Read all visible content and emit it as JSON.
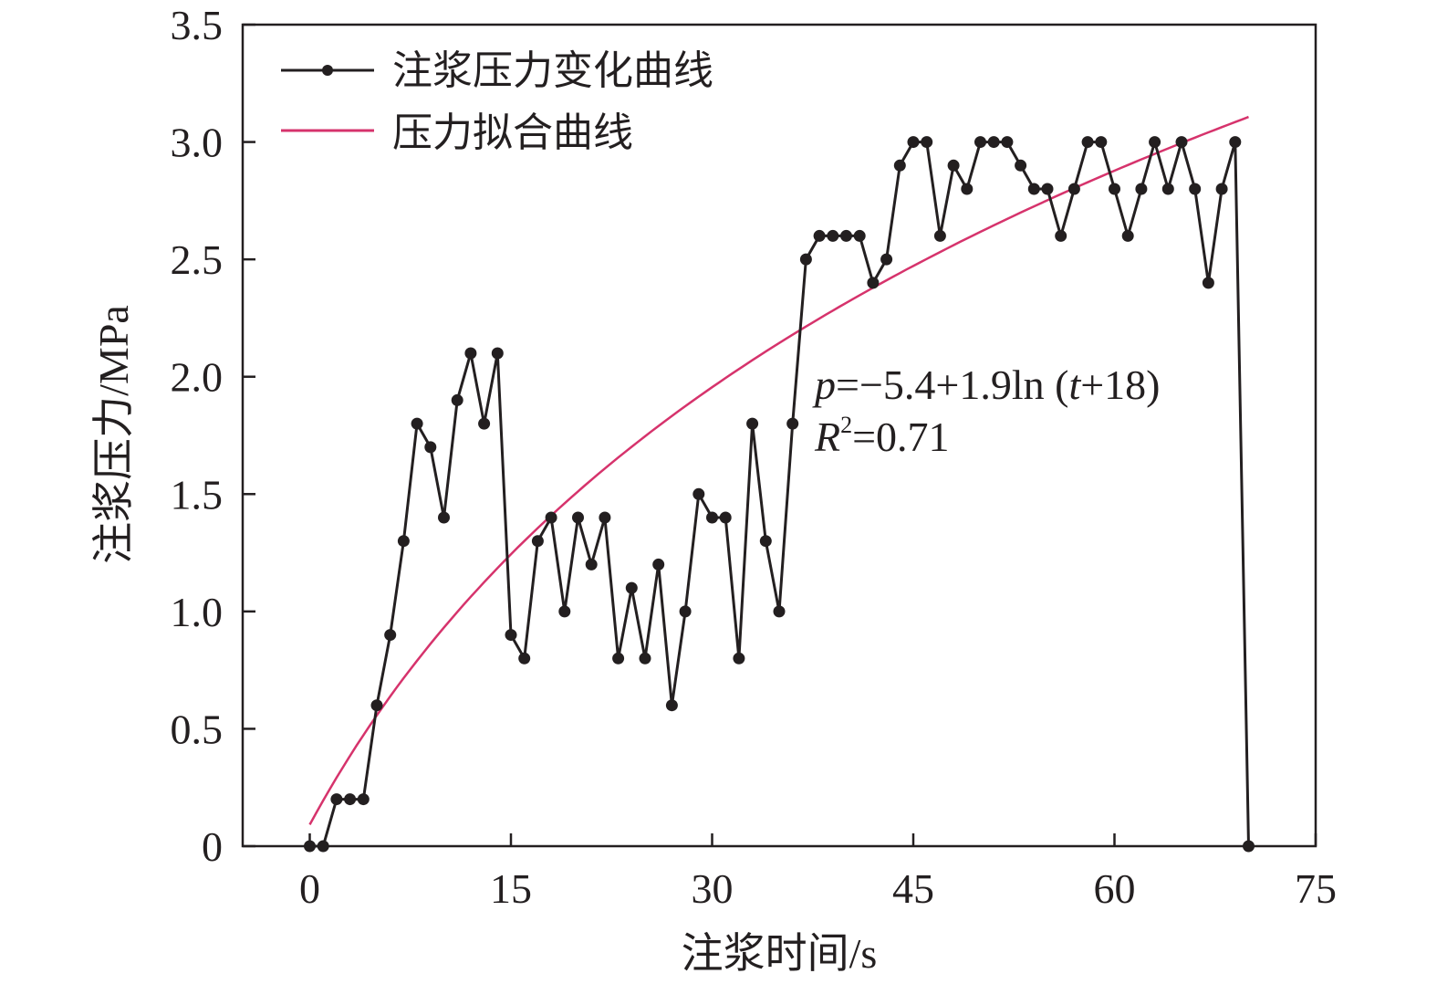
{
  "chart_data": {
    "type": "line",
    "xlabel": "注浆时间/s",
    "ylabel": "注浆压力/MPa",
    "xlim": [
      -5,
      75
    ],
    "ylim": [
      0,
      3.5
    ],
    "xticks": [
      0,
      15,
      30,
      45,
      60,
      75
    ],
    "yticks": [
      0,
      0.5,
      1.0,
      1.5,
      2.0,
      2.5,
      3.0,
      3.5
    ],
    "xtick_labels": [
      "0",
      "15",
      "30",
      "45",
      "60",
      "75"
    ],
    "ytick_labels": [
      "0",
      "0.5",
      "1.0",
      "1.5",
      "2.0",
      "2.5",
      "3.0",
      "3.5"
    ],
    "grid": false,
    "legend_position": "top-left",
    "series": [
      {
        "name": "注浆压力变化曲线",
        "color": "#231f20",
        "marker": "circle",
        "x": [
          0,
          1,
          2,
          3,
          4,
          5,
          6,
          7,
          8,
          9,
          10,
          11,
          12,
          13,
          14,
          15,
          16,
          17,
          18,
          19,
          20,
          21,
          22,
          23,
          24,
          25,
          26,
          27,
          28,
          29,
          30,
          31,
          32,
          33,
          34,
          35,
          36,
          37,
          38,
          39,
          40,
          41,
          42,
          43,
          44,
          45,
          46,
          47,
          48,
          49,
          50,
          51,
          52,
          53,
          54,
          55,
          56,
          57,
          58,
          59,
          60,
          61,
          62,
          63,
          64,
          65,
          66,
          67,
          68,
          69,
          70
        ],
        "y": [
          0,
          0,
          0.2,
          0.2,
          0.2,
          0.6,
          0.9,
          1.3,
          1.8,
          1.7,
          1.4,
          1.9,
          2.1,
          1.8,
          2.1,
          0.9,
          0.8,
          1.3,
          1.4,
          1.0,
          1.4,
          1.2,
          1.4,
          0.8,
          1.1,
          0.8,
          1.2,
          0.6,
          1.0,
          1.5,
          1.4,
          1.4,
          0.8,
          1.8,
          1.3,
          1.0,
          1.8,
          2.5,
          2.6,
          2.6,
          2.6,
          2.6,
          2.4,
          2.5,
          2.9,
          3.0,
          3.0,
          2.6,
          2.9,
          2.8,
          3.0,
          3.0,
          3.0,
          2.9,
          2.8,
          2.8,
          2.6,
          2.8,
          3.0,
          3.0,
          2.8,
          2.6,
          2.8,
          3.0,
          2.8,
          3.0,
          2.8,
          2.4,
          2.8,
          3.0,
          0
        ]
      },
      {
        "name": "压力拟合曲线",
        "color": "#d6336c",
        "marker": "none",
        "fit": {
          "intercept": -5.4,
          "coef": 1.9,
          "shift": 18,
          "x_range": [
            0,
            70
          ]
        }
      }
    ],
    "annotations": {
      "equation": {
        "p": "p",
        "rest1": "=−5.4+1.9ln (",
        "t": "t",
        "rest2": "+18)"
      },
      "r2": {
        "R": "R",
        "sup": "2",
        "rest": "=0.71"
      }
    }
  }
}
